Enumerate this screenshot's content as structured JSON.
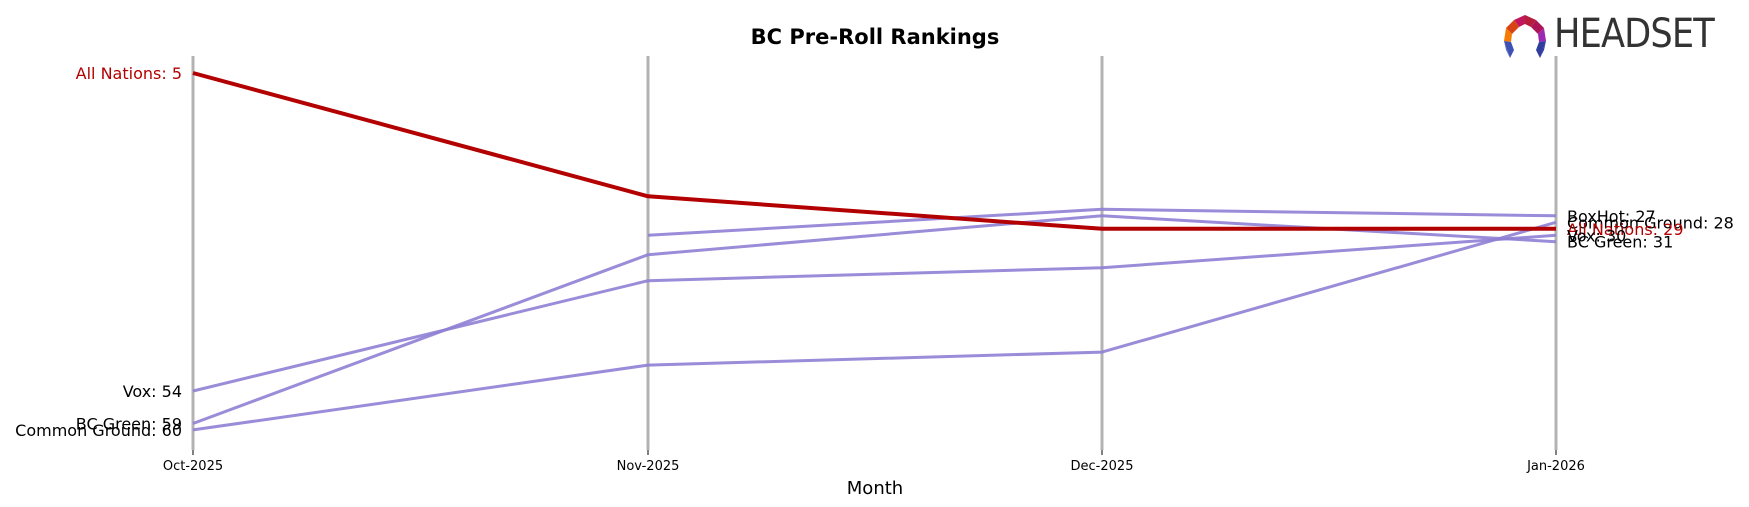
{
  "header": {
    "title": "BC Pre-Roll Rankings",
    "logo_text": "HEADSET"
  },
  "colors": {
    "highlight": "#b30000",
    "other": "#8f80d4",
    "gridline": "#b3b3b3",
    "logo_text": "#333333"
  },
  "chart_data": {
    "type": "line",
    "title": "BC Pre-Roll Rankings",
    "xlabel": "Month",
    "ylabel": "",
    "categories": [
      "Oct-2025",
      "Nov-2025",
      "Dec-2025",
      "Jan-2026"
    ],
    "y_inverted": true,
    "ylim": [
      5,
      60
    ],
    "grid": "vertical lines at each month",
    "legend": "none (inline end labels)",
    "series": [
      {
        "name": "All Nations",
        "values": [
          5,
          24,
          29,
          29
        ],
        "highlight": true
      },
      {
        "name": "BoxHot",
        "values": [
          null,
          30,
          26,
          27
        ],
        "highlight": false
      },
      {
        "name": "Common Ground",
        "values": [
          60,
          50,
          48,
          28
        ],
        "highlight": false
      },
      {
        "name": "Vox",
        "values": [
          54,
          37,
          35,
          30
        ],
        "highlight": false
      },
      {
        "name": "BC Green",
        "values": [
          59,
          33,
          27,
          31
        ],
        "highlight": false
      }
    ],
    "start_labels": [
      {
        "text": "All Nations: 5",
        "series": "All Nations"
      },
      {
        "text": "Vox: 54",
        "series": "Vox"
      },
      {
        "text": "BC Green: 59",
        "series": "BC Green"
      },
      {
        "text": "Common Ground: 60",
        "series": "Common Ground"
      }
    ],
    "end_labels": [
      {
        "text": "BoxHot: 27",
        "series": "BoxHot"
      },
      {
        "text": "Common Ground: 28",
        "series": "Common Ground"
      },
      {
        "text": "All Nations: 29",
        "series": "All Nations"
      },
      {
        "text": "Vox: 30",
        "series": "Vox"
      },
      {
        "text": "BC Green: 31",
        "series": "BC Green"
      }
    ]
  }
}
